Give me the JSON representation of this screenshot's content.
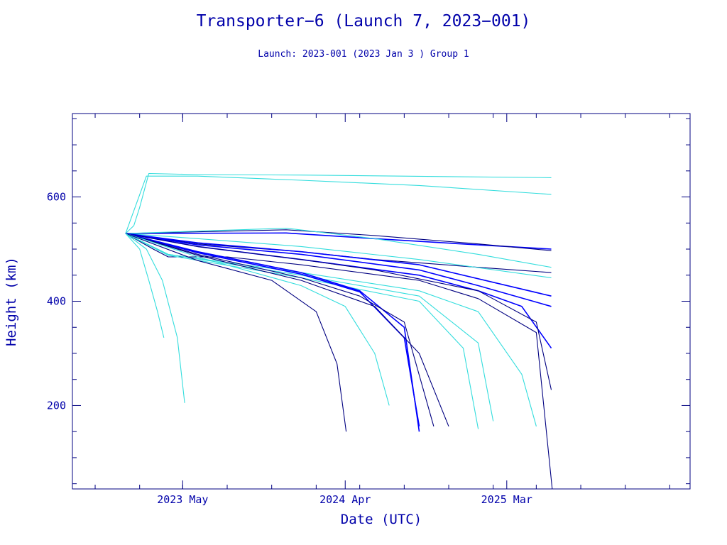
{
  "chart_data": {
    "type": "line",
    "title": "Transporter−6 (Launch 7, 2023−001)",
    "subtitle": "Launch: 2023-001  (2023 Jan  3 )  Group 1",
    "xlabel": "Date (UTC)",
    "ylabel": "Height (km)",
    "x_axis_type": "date",
    "xlim": [
      "2022-09-15",
      "2026-03-15"
    ],
    "ylim": [
      40,
      760
    ],
    "x_ticks": [
      {
        "date": "2023-05-01",
        "label": "2023 May"
      },
      {
        "date": "2024-04-01",
        "label": "2024 Apr"
      },
      {
        "date": "2025-03-01",
        "label": "2025 Mar"
      }
    ],
    "y_ticks": [
      200,
      400,
      600
    ],
    "grid": false,
    "legend": "none",
    "colors": {
      "dark": "#000080",
      "blue": "#0000ff",
      "cyan": "#33dddd",
      "axis": "#000080",
      "text": "#0000aa"
    },
    "series": [
      {
        "color": "cyan",
        "points": [
          [
            "2023-01-03",
            530
          ],
          [
            "2023-01-20",
            545
          ],
          [
            "2023-02-01",
            580
          ],
          [
            "2023-02-20",
            645
          ],
          [
            "2023-06-01",
            643
          ],
          [
            "2024-01-01",
            642
          ],
          [
            "2025-06-01",
            637
          ]
        ]
      },
      {
        "color": "cyan",
        "points": [
          [
            "2023-01-03",
            530
          ],
          [
            "2023-02-15",
            640
          ],
          [
            "2023-06-01",
            640
          ],
          [
            "2024-01-01",
            632
          ],
          [
            "2024-09-01",
            622
          ],
          [
            "2025-06-01",
            605
          ]
        ]
      },
      {
        "color": "blue",
        "points": [
          [
            "2023-01-03",
            530
          ],
          [
            "2023-12-01",
            531
          ],
          [
            "2024-06-01",
            520
          ],
          [
            "2025-01-01",
            508
          ],
          [
            "2025-06-01",
            500
          ]
        ]
      },
      {
        "color": "dark",
        "points": [
          [
            "2023-01-03",
            530
          ],
          [
            "2023-12-01",
            537
          ],
          [
            "2024-06-01",
            526
          ],
          [
            "2025-01-01",
            510
          ],
          [
            "2025-06-01",
            497
          ]
        ]
      },
      {
        "color": "cyan",
        "points": [
          [
            "2023-01-03",
            530
          ],
          [
            "2023-12-01",
            540
          ],
          [
            "2024-06-01",
            520
          ],
          [
            "2025-01-01",
            490
          ],
          [
            "2025-06-01",
            465
          ]
        ]
      },
      {
        "color": "dark",
        "points": [
          [
            "2023-01-03",
            530
          ],
          [
            "2023-06-01",
            510
          ],
          [
            "2024-01-01",
            495
          ],
          [
            "2024-06-01",
            480
          ],
          [
            "2025-01-01",
            465
          ],
          [
            "2025-06-01",
            455
          ]
        ]
      },
      {
        "color": "cyan",
        "points": [
          [
            "2023-01-03",
            530
          ],
          [
            "2023-06-01",
            520
          ],
          [
            "2024-01-01",
            505
          ],
          [
            "2024-09-01",
            480
          ],
          [
            "2025-06-01",
            445
          ]
        ]
      },
      {
        "color": "blue",
        "points": [
          [
            "2023-01-03",
            530
          ],
          [
            "2023-06-01",
            512
          ],
          [
            "2024-01-01",
            495
          ],
          [
            "2024-09-01",
            470
          ],
          [
            "2025-06-01",
            410
          ]
        ]
      },
      {
        "color": "blue",
        "points": [
          [
            "2023-01-03",
            530
          ],
          [
            "2023-06-01",
            508
          ],
          [
            "2024-01-01",
            490
          ],
          [
            "2024-09-01",
            460
          ],
          [
            "2025-01-01",
            430
          ],
          [
            "2025-06-01",
            390
          ]
        ]
      },
      {
        "color": "blue",
        "points": [
          [
            "2023-01-03",
            530
          ],
          [
            "2023-06-01",
            505
          ],
          [
            "2024-01-01",
            480
          ],
          [
            "2024-09-01",
            450
          ],
          [
            "2025-01-01",
            420
          ],
          [
            "2025-04-01",
            390
          ],
          [
            "2025-06-01",
            310
          ]
        ]
      },
      {
        "color": "dark",
        "points": [
          [
            "2023-01-03",
            530
          ],
          [
            "2023-06-01",
            505
          ],
          [
            "2024-01-01",
            480
          ],
          [
            "2024-06-01",
            460
          ],
          [
            "2025-01-01",
            420
          ],
          [
            "2025-05-01",
            360
          ],
          [
            "2025-06-01",
            230
          ]
        ]
      },
      {
        "color": "dark",
        "points": [
          [
            "2023-01-03",
            530
          ],
          [
            "2023-03-01",
            500
          ],
          [
            "2023-04-01",
            485
          ],
          [
            "2023-08-01",
            485
          ],
          [
            "2024-01-01",
            470
          ],
          [
            "2024-09-01",
            440
          ],
          [
            "2025-01-01",
            405
          ],
          [
            "2025-05-01",
            340
          ],
          [
            "2025-06-03",
            40
          ]
        ]
      },
      {
        "color": "cyan",
        "points": [
          [
            "2023-01-03",
            530
          ],
          [
            "2023-04-01",
            490
          ],
          [
            "2024-01-01",
            455
          ],
          [
            "2024-09-01",
            420
          ],
          [
            "2025-01-01",
            380
          ],
          [
            "2025-04-01",
            260
          ],
          [
            "2025-05-01",
            160
          ]
        ]
      },
      {
        "color": "cyan",
        "points": [
          [
            "2023-01-03",
            530
          ],
          [
            "2023-04-01",
            490
          ],
          [
            "2024-01-01",
            450
          ],
          [
            "2024-09-01",
            410
          ],
          [
            "2025-01-01",
            320
          ],
          [
            "2025-02-01",
            170
          ]
        ]
      },
      {
        "color": "cyan",
        "points": [
          [
            "2023-01-03",
            530
          ],
          [
            "2023-04-01",
            488
          ],
          [
            "2024-01-01",
            445
          ],
          [
            "2024-09-01",
            400
          ],
          [
            "2024-12-01",
            310
          ],
          [
            "2025-01-01",
            155
          ]
        ]
      },
      {
        "color": "blue",
        "points": [
          [
            "2023-01-03",
            530
          ],
          [
            "2023-06-01",
            495
          ],
          [
            "2024-01-01",
            455
          ],
          [
            "2024-05-01",
            420
          ],
          [
            "2024-08-01",
            350
          ],
          [
            "2024-09-01",
            150
          ]
        ]
      },
      {
        "color": "blue",
        "points": [
          [
            "2023-01-03",
            530
          ],
          [
            "2023-06-01",
            493
          ],
          [
            "2024-01-01",
            452
          ],
          [
            "2024-05-01",
            418
          ],
          [
            "2024-08-01",
            330
          ],
          [
            "2024-09-01",
            160
          ]
        ]
      },
      {
        "color": "dark",
        "points": [
          [
            "2023-01-03",
            530
          ],
          [
            "2023-06-01",
            490
          ],
          [
            "2024-01-01",
            445
          ],
          [
            "2024-05-01",
            410
          ],
          [
            "2024-08-01",
            360
          ],
          [
            "2024-10-01",
            160
          ]
        ]
      },
      {
        "color": "dark",
        "points": [
          [
            "2023-01-03",
            530
          ],
          [
            "2023-06-01",
            488
          ],
          [
            "2024-01-01",
            440
          ],
          [
            "2024-06-01",
            390
          ],
          [
            "2024-09-01",
            300
          ],
          [
            "2024-11-01",
            160
          ]
        ]
      },
      {
        "color": "cyan",
        "points": [
          [
            "2023-01-03",
            530
          ],
          [
            "2023-06-01",
            485
          ],
          [
            "2024-01-01",
            430
          ],
          [
            "2024-04-01",
            390
          ],
          [
            "2024-06-01",
            300
          ],
          [
            "2024-07-01",
            200
          ]
        ]
      },
      {
        "color": "dark",
        "points": [
          [
            "2023-01-03",
            530
          ],
          [
            "2023-06-01",
            478
          ],
          [
            "2023-11-01",
            440
          ],
          [
            "2024-02-01",
            380
          ],
          [
            "2024-03-15",
            280
          ],
          [
            "2024-04-03",
            150
          ]
        ]
      },
      {
        "color": "cyan",
        "points": [
          [
            "2023-01-03",
            530
          ],
          [
            "2023-02-01",
            500
          ],
          [
            "2023-02-20",
            440
          ],
          [
            "2023-03-10",
            380
          ],
          [
            "2023-03-23",
            330
          ]
        ]
      },
      {
        "color": "cyan",
        "points": [
          [
            "2023-01-03",
            530
          ],
          [
            "2023-02-15",
            500
          ],
          [
            "2023-03-20",
            440
          ],
          [
            "2023-04-20",
            330
          ],
          [
            "2023-05-05",
            205
          ]
        ]
      }
    ]
  }
}
